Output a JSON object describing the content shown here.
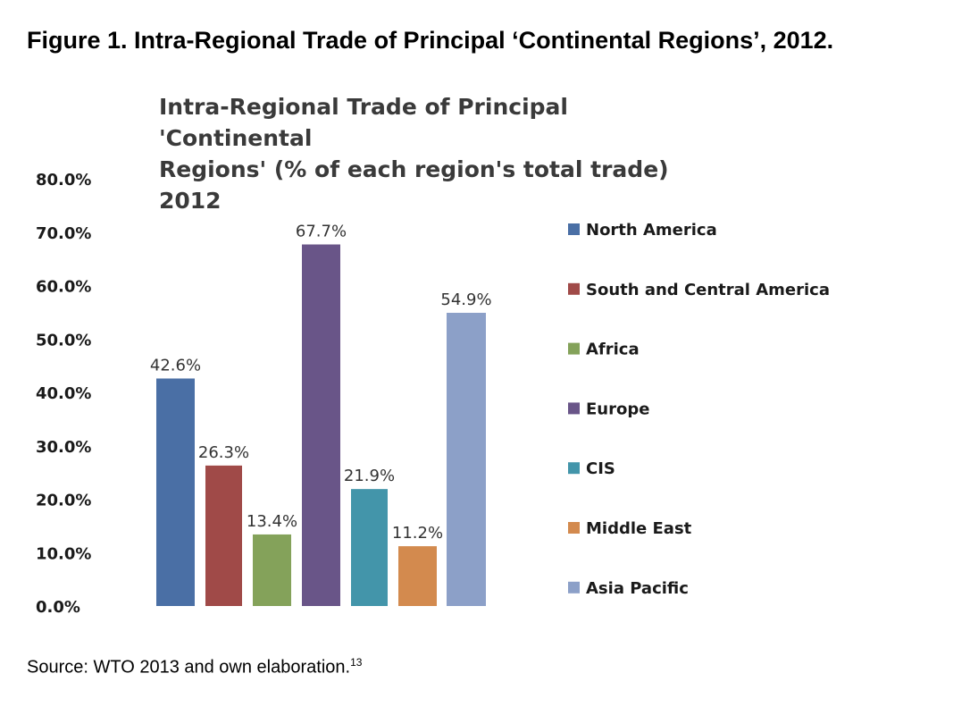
{
  "figure_caption": "Figure 1. Intra-Regional Trade of Principal ‘Continental Regions’, 2012.",
  "source_note": {
    "text": "Source: WTO 2013 and own elaboration.",
    "footnote": "13"
  },
  "chart_data": {
    "type": "bar",
    "title": "Intra-Regional Trade of Principal 'Continental Regions' (% of each region's total trade) 2012",
    "title_lines": [
      "Intra-Regional Trade of Principal 'Continental",
      "Regions' (% of each region's total trade) 2012"
    ],
    "xlabel": "",
    "ylabel": "",
    "ylim": [
      0,
      80
    ],
    "yticks": [
      0,
      10,
      20,
      30,
      40,
      50,
      60,
      70,
      80
    ],
    "ytick_labels": [
      "0.0%",
      "10.0%",
      "20.0%",
      "30.0%",
      "40.0%",
      "50.0%",
      "60.0%",
      "70.0%",
      "80.0%"
    ],
    "grid": false,
    "legend_position": "right",
    "categories": [
      "North America",
      "South and Central America",
      "Africa",
      "Europe",
      "CIS",
      "Middle East",
      "Asia Pacific"
    ],
    "values": [
      42.6,
      26.3,
      13.4,
      67.7,
      21.9,
      11.2,
      54.9
    ],
    "data_labels": [
      "42.6%",
      "26.3%",
      "13.4%",
      "67.7%",
      "21.9%",
      "11.2%",
      "54.9%"
    ],
    "colors": [
      "#4a6fa5",
      "#a04a48",
      "#84a25a",
      "#695588",
      "#4395aa",
      "#d38a4e",
      "#8ca0c8"
    ]
  }
}
